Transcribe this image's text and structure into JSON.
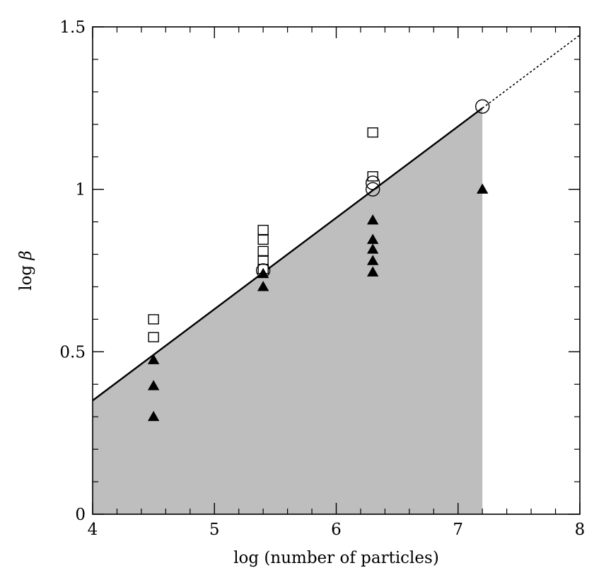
{
  "chart_data": {
    "type": "scatter",
    "xlabel": "log (number of particles)",
    "ylabel_prefix": "log ",
    "ylabel_symbol": "β",
    "xlim": [
      4,
      8
    ],
    "ylim": [
      0,
      1.5
    ],
    "x_ticks": [
      {
        "value": 4,
        "label": "4"
      },
      {
        "value": 5,
        "label": "5"
      },
      {
        "value": 6,
        "label": "6"
      },
      {
        "value": 7,
        "label": "7"
      },
      {
        "value": 8,
        "label": "8"
      }
    ],
    "y_ticks": [
      {
        "value": 0,
        "label": "0"
      },
      {
        "value": 0.5,
        "label": "0.5"
      },
      {
        "value": 1,
        "label": "1"
      },
      {
        "value": 1.5,
        "label": "1.5"
      }
    ],
    "shaded_region": {
      "x_end": 7.2,
      "fill": "#bebebe"
    },
    "fit_line": {
      "x": [
        4,
        7.2
      ],
      "y": [
        0.35,
        1.25
      ]
    },
    "extrapolated_line": {
      "x": [
        7.2,
        8
      ],
      "y": [
        1.25,
        1.475
      ]
    },
    "series": [
      {
        "marker": "open-square",
        "x": [
          4.5,
          4.5,
          5.4,
          5.4,
          5.4,
          5.4,
          5.4,
          6.3,
          6.3
        ],
        "y": [
          0.6,
          0.545,
          0.875,
          0.845,
          0.81,
          0.78,
          0.755,
          1.175,
          1.04
        ]
      },
      {
        "marker": "open-circle",
        "x": [
          5.4,
          6.3,
          6.3,
          7.2
        ],
        "y": [
          0.75,
          1.02,
          1.0,
          1.255
        ]
      },
      {
        "marker": "filled-triangle",
        "x": [
          4.5,
          4.5,
          4.5,
          5.4,
          5.4,
          6.3,
          6.3,
          6.3,
          6.3,
          6.3,
          7.2
        ],
        "y": [
          0.475,
          0.395,
          0.3,
          0.74,
          0.7,
          0.905,
          0.845,
          0.815,
          0.78,
          0.745,
          1.0
        ]
      }
    ]
  }
}
